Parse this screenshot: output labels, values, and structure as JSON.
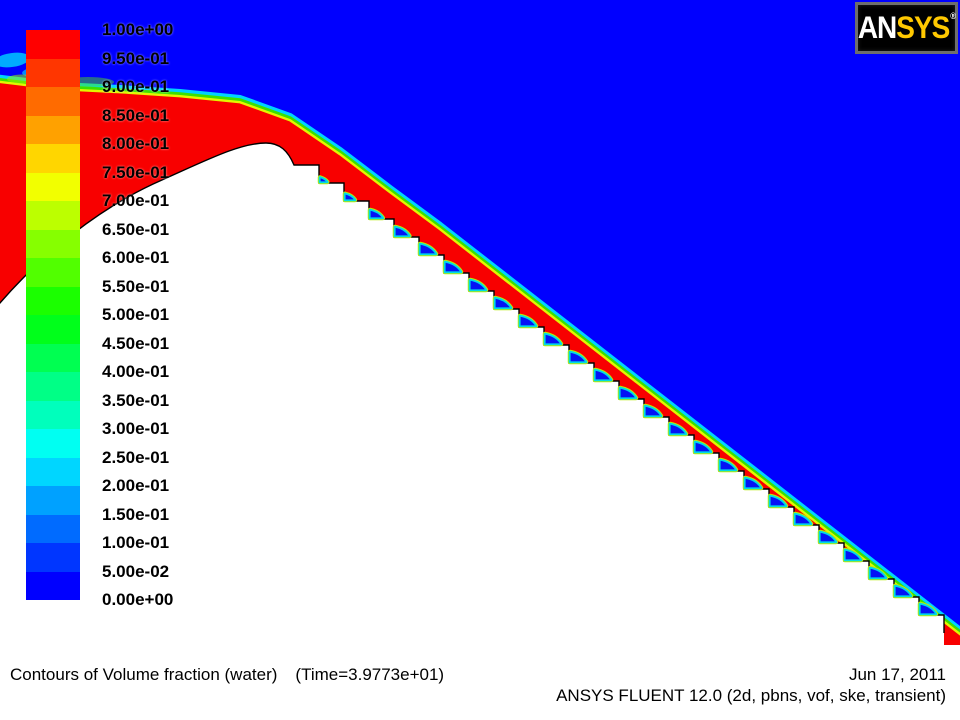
{
  "window": {
    "app": "ANSYS FLUENT graphics window",
    "quantity": "Volume fraction (water)"
  },
  "logo": {
    "an": "AN",
    "sys": "SYS",
    "reg": "®"
  },
  "legend": {
    "values": [
      "1.00e+00",
      "9.50e-01",
      "9.00e-01",
      "8.50e-01",
      "8.00e-01",
      "7.50e-01",
      "7.00e-01",
      "6.50e-01",
      "6.00e-01",
      "5.50e-01",
      "5.00e-01",
      "4.50e-01",
      "4.00e-01",
      "3.50e-01",
      "3.00e-01",
      "2.50e-01",
      "2.00e-01",
      "1.50e-01",
      "1.00e-01",
      "5.00e-02",
      "0.00e+00"
    ],
    "band_colors": [
      "#FF0000",
      "#FF3600",
      "#FF6B00",
      "#FFA100",
      "#FFD600",
      "#F2FF00",
      "#BCFF00",
      "#86FF00",
      "#51FF00",
      "#1BFF00",
      "#00FF1B",
      "#00FF51",
      "#00FF86",
      "#00FFBC",
      "#00FFF2",
      "#00D6FF",
      "#00A1FF",
      "#006BFF",
      "#0036FF",
      "#0000FF"
    ]
  },
  "footer": {
    "title": "Contours of Volume fraction (water)",
    "time": "(Time=3.9773e+01)",
    "date": "Jun 17, 2011",
    "solver": "ANSYS FLUENT 12.0 (2d, pbns, vof, ske, transient)"
  },
  "field_colors": {
    "air": "#0000FF",
    "water": "#F80000",
    "interface_cyan": "#00D2FF",
    "interface_green": "#3CE000",
    "interface_yellow": "#E2F600",
    "pocket_fill": "#0312F5",
    "pocket_rim_inner": "#00D8E8",
    "pocket_rim_outer": "#B8EE00",
    "solid": "#FFFFFF",
    "outline": "#000000"
  },
  "chart_data": {
    "type": "heatmap",
    "title": "Contours of Volume fraction (water)",
    "annotation_time": "(Time=3.9773e+01)",
    "date": "Jun 17, 2011",
    "solver_info": "ANSYS FLUENT 12.0 (2d, pbns, vof, ske, transient)",
    "quantity": "Volume fraction (water)",
    "levels": [
      1.0,
      0.95,
      0.9,
      0.85,
      0.8,
      0.75,
      0.7,
      0.65,
      0.6,
      0.55,
      0.5,
      0.45,
      0.4,
      0.35,
      0.3,
      0.25,
      0.2,
      0.15,
      0.1,
      0.05,
      0.0
    ],
    "colormap_hex": [
      "#FF0000",
      "#FF3600",
      "#FF6B00",
      "#FFA100",
      "#FFD600",
      "#F2FF00",
      "#BCFF00",
      "#86FF00",
      "#51FF00",
      "#1BFF00",
      "#00FF1B",
      "#00FF51",
      "#00FF86",
      "#00FFBC",
      "#00FFF2",
      "#00D6FF",
      "#00A1FF",
      "#006BFF",
      "#0036FF",
      "#0000FF"
    ],
    "legend_position": "left",
    "scene": {
      "description": "2-D VOF simulation of water flowing over an ogee crest onto a stepped spillway; water (volume fraction = 1, red) forms a thin supercritical sheet over 26 steps descending to the lower right; air (volume fraction = 0, blue) fills the region above the free surface; trapped air pockets (blue with green/cyan fringe) sit in each step corner; spillway solid is blank/white",
      "step_count": 26,
      "regions": [
        {
          "name": "air",
          "volume_fraction": 0.0,
          "color": "#0000FF"
        },
        {
          "name": "water",
          "volume_fraction": 1.0,
          "color": "#F80000"
        },
        {
          "name": "free-surface interface",
          "volume_fraction": "0.05-0.95",
          "color": "rainbow fringe"
        },
        {
          "name": "spillway solid",
          "volume_fraction": null,
          "color": "#FFFFFF"
        }
      ]
    }
  }
}
